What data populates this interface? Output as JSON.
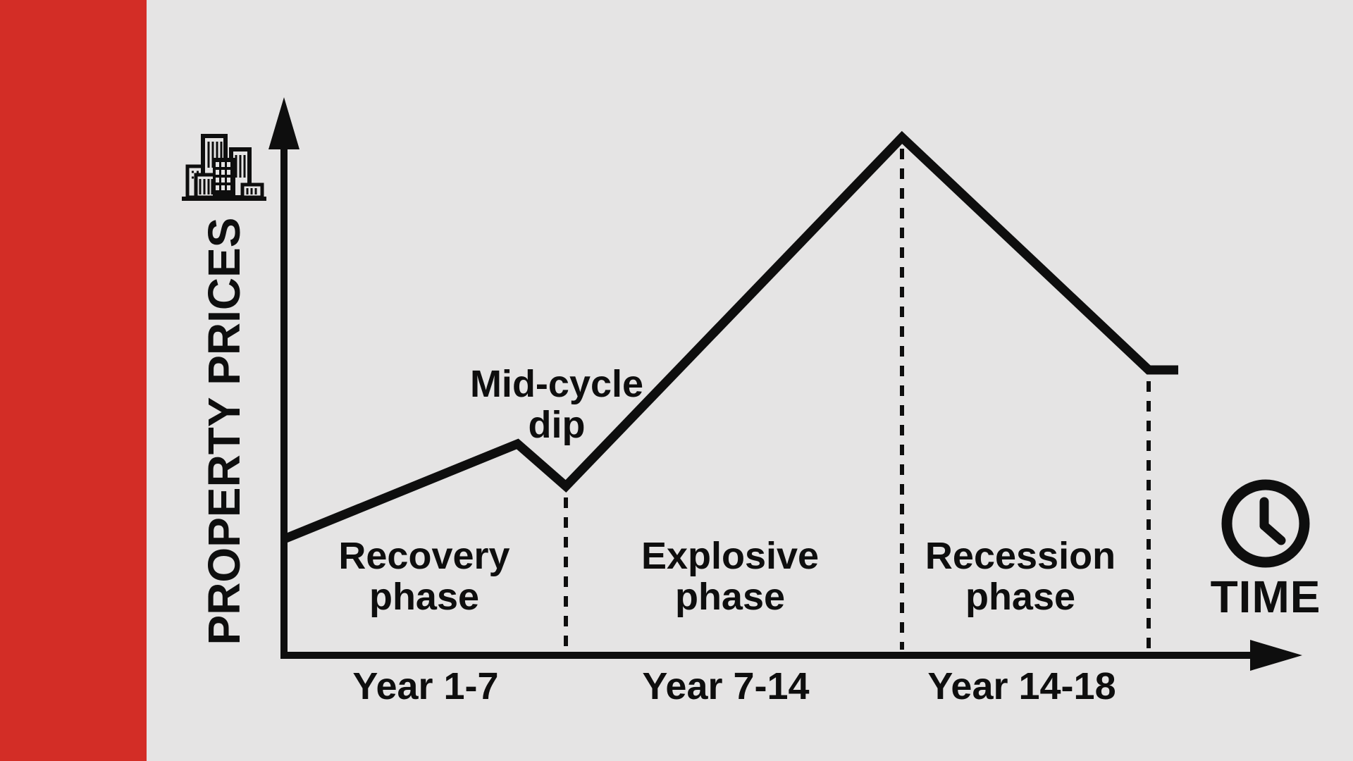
{
  "colors": {
    "background": "#e5e4e4",
    "sidebar_red": "#d32d26",
    "ink": "#0e0e0e"
  },
  "chart_data": {
    "type": "line",
    "title": "",
    "ylabel": "PROPERTY PRICES",
    "xlabel": "TIME",
    "x_unit": "years",
    "x_years": [
      0,
      5.8,
      7,
      14,
      18,
      18.7
    ],
    "price_index": [
      22,
      40,
      32,
      98,
      54,
      54
    ],
    "ylim": [
      0,
      105
    ],
    "grid": false,
    "numeric_axis_ticks": false,
    "dashed_marker_years": [
      7,
      14,
      18
    ],
    "annotation": "Mid-cycle dip",
    "phases": [
      {
        "label": "Recovery phase",
        "range": "Year 1-7"
      },
      {
        "label": "Explosive phase",
        "range": "Year 7-14"
      },
      {
        "label": "Recession phase",
        "range": "Year 14-18"
      }
    ]
  },
  "icons": {
    "y_axis": "city-buildings-icon",
    "x_axis": "clock-icon"
  }
}
